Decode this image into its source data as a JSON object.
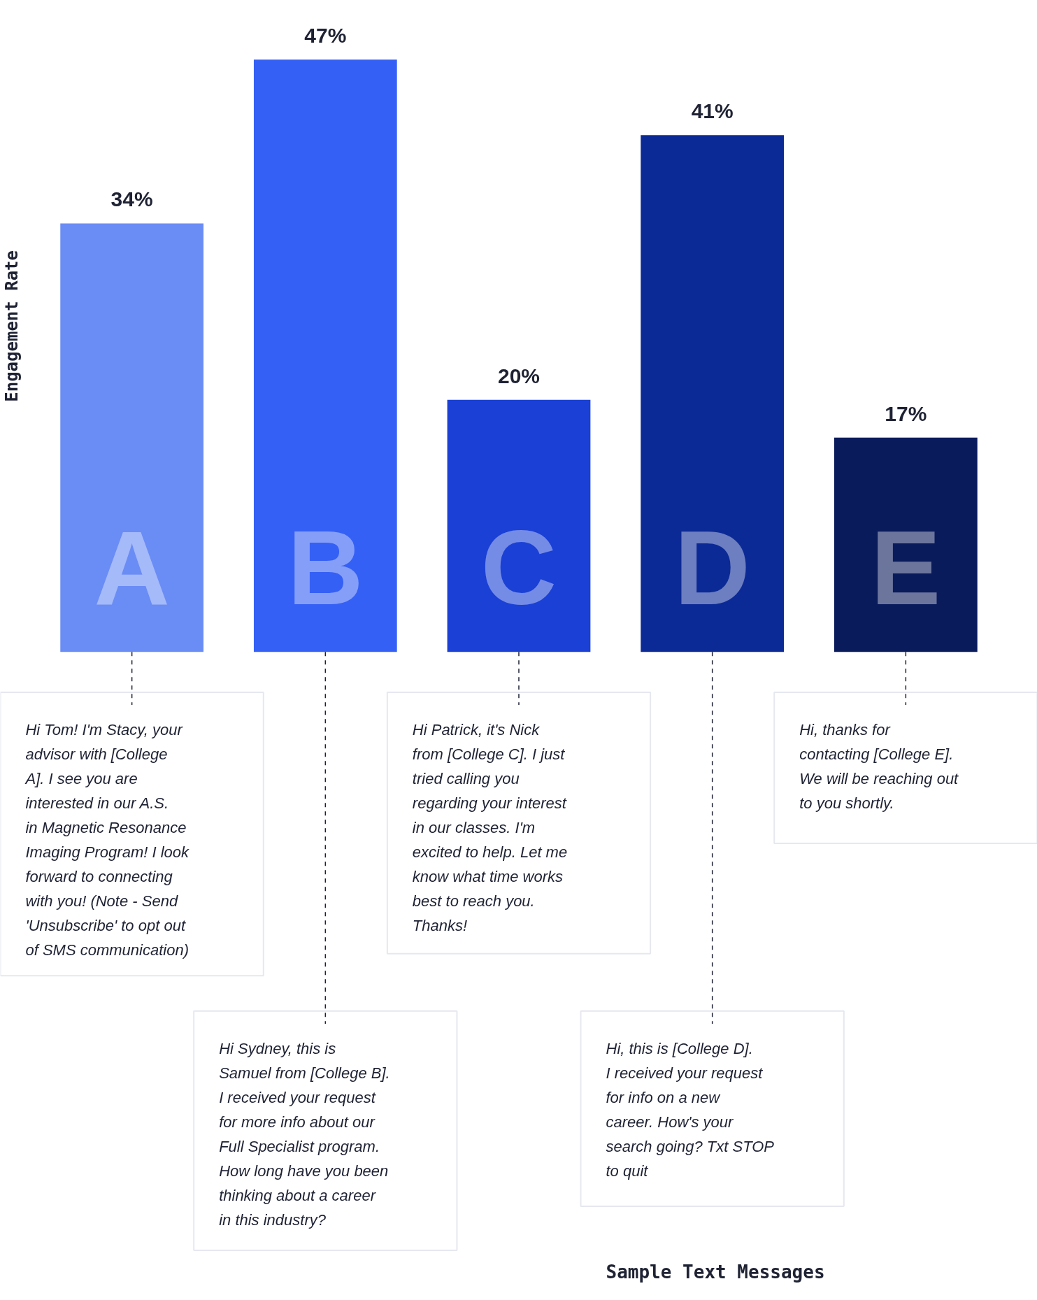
{
  "chart_data": {
    "type": "bar",
    "ylabel": "Engagement Rate",
    "categories": [
      "A",
      "B",
      "C",
      "D",
      "E"
    ],
    "values": [
      34,
      47,
      20,
      41,
      17
    ],
    "value_labels": [
      "34%",
      "47%",
      "20%",
      "41%",
      "17%"
    ],
    "colors": [
      "#6a8cf5",
      "#3560f5",
      "#1a40d6",
      "#0c2a96",
      "#0a1b5c"
    ],
    "grid": false,
    "annotations": [
      "Hi Tom! I'm Stacy, your advisor with [College A]. I see you are interested in our A.S. in Magnetic Resonance Imaging Program! I look forward to connecting with you! (Note - Send 'Unsubscribe' to opt out of SMS communication)",
      "Hi Sydney, this is Samuel from [College B]. I received your request for more info about our Full Specialist program. How long have you been thinking about a career in this industry?",
      "Hi Patrick, it's Nick from [College C]. I just tried calling you regarding your interest in our classes. I'm excited to help. Let me know what time works best to reach you. Thanks!",
      "Hi, this is [College D]. I received your request for info on a new career. How's your search going? Txt STOP to quit",
      "Hi, thanks for contacting [College E]. We will be reaching out to you shortly.",
      "Sample Text Messages"
    ]
  }
}
